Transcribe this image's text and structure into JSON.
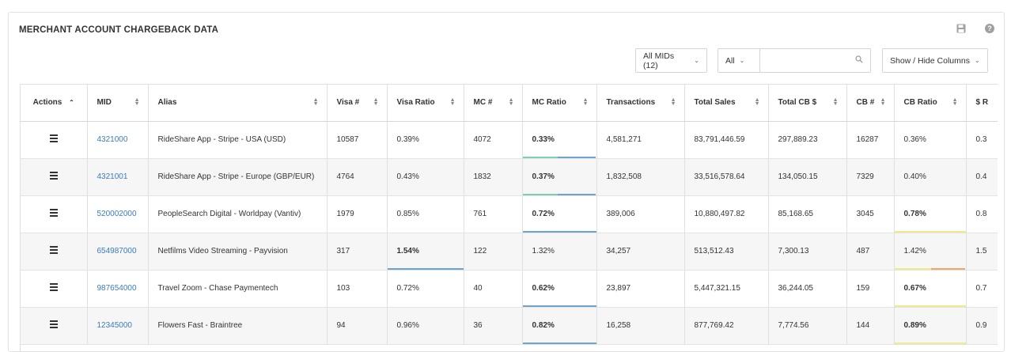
{
  "panel": {
    "title": "MERCHANT ACCOUNT CHARGEBACK DATA",
    "icons": [
      "save-icon",
      "help-icon"
    ]
  },
  "controls": {
    "mids_label": "All MIDs (12)",
    "all_label": "All",
    "search_value": "",
    "show_hide_label": "Show / Hide Columns"
  },
  "table": {
    "headers": [
      "Actions",
      "MID",
      "Alias",
      "Visa #",
      "Visa Ratio",
      "MC #",
      "MC Ratio",
      "Transactions",
      "Total Sales",
      "Total CB $",
      "CB #",
      "CB Ratio",
      "$ R"
    ],
    "rows": [
      {
        "mid": "4321000",
        "alias": "RideShare App - Stripe - USA (USD)",
        "visa_n": "10587",
        "visa_ratio": "0.39%",
        "mc_n": "4072",
        "mc_ratio": "0.33%",
        "transactions": "4,581,271",
        "total_sales": "83,791,446.59",
        "total_cb": "297,889.23",
        "cb_n": "16287",
        "cb_ratio": "0.36%",
        "extra": "0.3"
      },
      {
        "mid": "4321001",
        "alias": "RideShare App - Stripe - Europe (GBP/EUR)",
        "visa_n": "4764",
        "visa_ratio": "0.43%",
        "mc_n": "1832",
        "mc_ratio": "0.37%",
        "transactions": "1,832,508",
        "total_sales": "33,516,578.64",
        "total_cb": "134,050.15",
        "cb_n": "7329",
        "cb_ratio": "0.40%",
        "extra": "0.4"
      },
      {
        "mid": "520002000",
        "alias": "PeopleSearch Digital - Worldpay (Vantiv)",
        "visa_n": "1979",
        "visa_ratio": "0.85%",
        "mc_n": "761",
        "mc_ratio": "0.72%",
        "transactions": "389,006",
        "total_sales": "10,880,497.82",
        "total_cb": "85,168.65",
        "cb_n": "3045",
        "cb_ratio": "0.78%",
        "extra": "0.8"
      },
      {
        "mid": "654987000",
        "alias": "Netfilms Video Streaming - Payvision",
        "visa_n": "317",
        "visa_ratio": "1.54%",
        "mc_n": "122",
        "mc_ratio": "1.32%",
        "transactions": "34,257",
        "total_sales": "513,512.43",
        "total_cb": "7,300.13",
        "cb_n": "487",
        "cb_ratio": "1.42%",
        "extra": "1.5"
      },
      {
        "mid": "987654000",
        "alias": "Travel Zoom - Chase Paymentech",
        "visa_n": "103",
        "visa_ratio": "0.72%",
        "mc_n": "40",
        "mc_ratio": "0.62%",
        "transactions": "23,897",
        "total_sales": "5,447,321.15",
        "total_cb": "36,244.05",
        "cb_n": "159",
        "cb_ratio": "0.67%",
        "extra": "0.7"
      },
      {
        "mid": "12345000",
        "alias": "Flowers Fast - Braintree",
        "visa_n": "94",
        "visa_ratio": "0.96%",
        "mc_n": "36",
        "mc_ratio": "0.82%",
        "transactions": "16,258",
        "total_sales": "877,769.42",
        "total_cb": "7,774.56",
        "cb_n": "144",
        "cb_ratio": "0.89%",
        "extra": "0.9"
      }
    ],
    "bar_colors": {
      "blue": "#6fa3d0",
      "teal": "#7fcfb8",
      "yellow": "#f2ea8a",
      "orange": "#f0a56a"
    }
  }
}
